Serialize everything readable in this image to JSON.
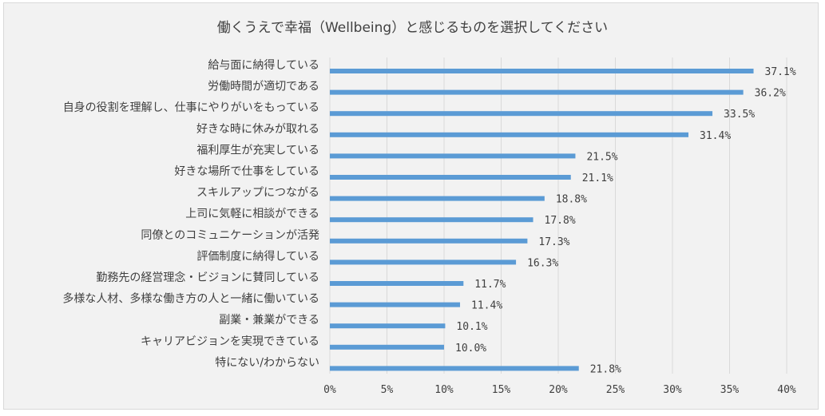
{
  "chart_data": {
    "type": "bar",
    "orientation": "horizontal",
    "title": "働くうえで幸福（Wellbeing）と感じるものを選択してください",
    "categories": [
      "給与面に納得している",
      "労働時間が適切である",
      "自身の役割を理解し、仕事にやりがいをもっている",
      "好きな時に休みが取れる",
      "福利厚生が充実している",
      "好きな場所で仕事をしている",
      "スキルアップにつながる",
      "上司に気軽に相談ができる",
      "同僚とのコミュニケーションが活発",
      "評価制度に納得している",
      "勤務先の経営理念・ビジョンに賛同している",
      "多様な人材、多様な働き方の人と一緒に働いている",
      "副業・兼業ができる",
      "キャリアビジョンを実現できている",
      "特にない/わからない"
    ],
    "values": [
      37.1,
      36.2,
      33.5,
      31.4,
      21.5,
      21.1,
      18.8,
      17.8,
      17.3,
      16.3,
      11.7,
      11.4,
      10.1,
      10.0,
      21.8
    ],
    "value_labels": [
      "37.1%",
      "36.2%",
      "33.5%",
      "31.4%",
      "21.5%",
      "21.1%",
      "18.8%",
      "17.8%",
      "17.3%",
      "16.3%",
      "11.7%",
      "11.4%",
      "10.1%",
      "10.0%",
      "21.8%"
    ],
    "xlim": [
      0,
      40
    ],
    "xticks": [
      0,
      5,
      10,
      15,
      20,
      25,
      30,
      35,
      40
    ],
    "xtick_labels": [
      "0%",
      "5%",
      "10%",
      "15%",
      "20%",
      "25%",
      "30%",
      "35%",
      "40%"
    ],
    "grid": true,
    "bar_color": "#5b9bd5",
    "grid_color": "#d9d9d9",
    "background_color": "#f2f2f2"
  }
}
